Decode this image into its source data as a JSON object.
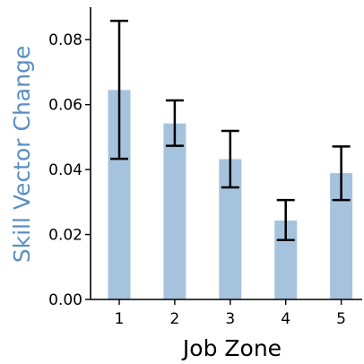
{
  "chart_data": {
    "type": "bar",
    "xlabel": "Job Zone",
    "ylabel": "Skill Vector Change",
    "categories": [
      "1",
      "2",
      "3",
      "4",
      "5"
    ],
    "values": [
      0.0645,
      0.0542,
      0.0432,
      0.0243,
      0.0389
    ],
    "error_low": [
      0.0433,
      0.0473,
      0.0345,
      0.0183,
      0.0306
    ],
    "error_high": [
      0.0858,
      0.0613,
      0.0519,
      0.0306,
      0.0471
    ],
    "ylim": [
      0,
      0.09
    ],
    "yticks": [
      "0.00",
      "0.02",
      "0.04",
      "0.06",
      "0.08"
    ],
    "ytick_values": [
      0,
      0.02,
      0.04,
      0.06,
      0.08
    ],
    "grid": false,
    "colors": {
      "bar": "#a6c3de",
      "ylabel": "#5b8fc1",
      "error": "#000000",
      "axis": "#000000"
    }
  }
}
